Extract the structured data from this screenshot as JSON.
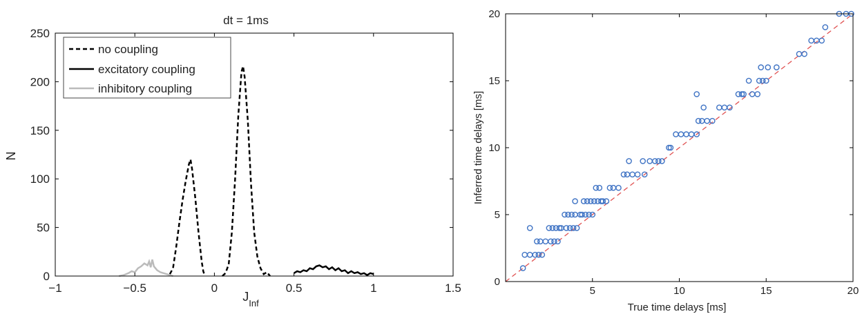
{
  "chart_data": [
    {
      "type": "line",
      "title": "dt = 1ms",
      "xlabel": "J",
      "xlabel_sub": "Inf",
      "ylabel": "N",
      "xlim": [
        -1,
        1.5
      ],
      "ylim": [
        0,
        250
      ],
      "xticks": [
        -1,
        -0.5,
        0,
        0.5,
        1,
        1.5
      ],
      "xtick_labels": [
        "−1",
        "−0.5",
        "0",
        "0.5",
        "1",
        "1.5"
      ],
      "yticks": [
        0,
        50,
        100,
        150,
        200,
        250
      ],
      "ytick_labels": [
        "0",
        "50",
        "100",
        "150",
        "200",
        "250"
      ],
      "legend_position": "top-left",
      "series": [
        {
          "name": "no coupling",
          "color": "#000000",
          "style": "dashed",
          "segments": [
            [
              [
                -0.28,
                2
              ],
              [
                -0.26,
                8
              ],
              [
                -0.24,
                30
              ],
              [
                -0.22,
                55
              ],
              [
                -0.2,
                78
              ],
              [
                -0.18,
                98
              ],
              [
                -0.16,
                115
              ],
              [
                -0.15,
                120
              ],
              [
                -0.14,
                110
              ],
              [
                -0.12,
                80
              ],
              [
                -0.1,
                45
              ],
              [
                -0.09,
                30
              ],
              [
                -0.08,
                15
              ],
              [
                -0.07,
                5
              ],
              [
                -0.06,
                0
              ]
            ],
            [
              [
                0.05,
                0
              ],
              [
                0.07,
                3
              ],
              [
                0.09,
                12
              ],
              [
                0.11,
                45
              ],
              [
                0.13,
                100
              ],
              [
                0.15,
                165
              ],
              [
                0.17,
                210
              ],
              [
                0.18,
                216
              ],
              [
                0.19,
                205
              ],
              [
                0.21,
                160
              ],
              [
                0.23,
                95
              ],
              [
                0.25,
                45
              ],
              [
                0.27,
                20
              ],
              [
                0.29,
                8
              ],
              [
                0.31,
                2
              ],
              [
                0.33,
                4
              ],
              [
                0.35,
                0
              ]
            ]
          ]
        },
        {
          "name": "excitatory coupling",
          "color": "#000000",
          "style": "solid",
          "segments": [
            [
              [
                0.5,
                3
              ],
              [
                0.52,
                5
              ],
              [
                0.54,
                4
              ],
              [
                0.56,
                6
              ],
              [
                0.58,
                5
              ],
              [
                0.6,
                8
              ],
              [
                0.62,
                7
              ],
              [
                0.64,
                10
              ],
              [
                0.66,
                11
              ],
              [
                0.68,
                9
              ],
              [
                0.7,
                10
              ],
              [
                0.72,
                7
              ],
              [
                0.74,
                9
              ],
              [
                0.76,
                6
              ],
              [
                0.78,
                8
              ],
              [
                0.8,
                5
              ],
              [
                0.82,
                6
              ],
              [
                0.84,
                3
              ],
              [
                0.86,
                5
              ],
              [
                0.88,
                3
              ],
              [
                0.9,
                4
              ],
              [
                0.92,
                2
              ],
              [
                0.94,
                3
              ],
              [
                0.96,
                1
              ],
              [
                0.98,
                3
              ],
              [
                1.0,
                2
              ]
            ]
          ]
        },
        {
          "name": "inhibitory coupling",
          "color": "#bbbbbb",
          "style": "solid",
          "segments": [
            [
              [
                -0.6,
                0
              ],
              [
                -0.57,
                1
              ],
              [
                -0.54,
                3
              ],
              [
                -0.52,
                5
              ],
              [
                -0.5,
                4
              ],
              [
                -0.48,
                8
              ],
              [
                -0.46,
                10
              ],
              [
                -0.44,
                13
              ],
              [
                -0.42,
                11
              ],
              [
                -0.41,
                15
              ],
              [
                -0.4,
                9
              ],
              [
                -0.39,
                17
              ],
              [
                -0.38,
                10
              ],
              [
                -0.36,
                6
              ],
              [
                -0.34,
                4
              ],
              [
                -0.32,
                3
              ],
              [
                -0.3,
                2
              ],
              [
                -0.28,
                1
              ],
              [
                -0.26,
                0
              ]
            ]
          ]
        }
      ]
    },
    {
      "type": "scatter",
      "xlabel": "True time delays [ms]",
      "ylabel": "Inferred time delays [ms]",
      "xlim": [
        0,
        20
      ],
      "ylim": [
        0,
        20
      ],
      "xticks": [
        5,
        10,
        15,
        20
      ],
      "yticks": [
        0,
        5,
        10,
        15,
        20
      ],
      "marker": "open-circle",
      "marker_color": "#3f73c4",
      "reference_line": {
        "style": "dashed",
        "color": "#e05050",
        "from": [
          0,
          0
        ],
        "to": [
          20,
          20
        ]
      },
      "points": {
        "x": [
          1,
          1.1,
          1.4,
          1.4,
          1.7,
          1.8,
          1.9,
          2.0,
          2.1,
          2.3,
          2.5,
          2.6,
          2.7,
          2.8,
          2.9,
          3.0,
          3.1,
          3.2,
          3.4,
          3.5,
          3.6,
          3.7,
          3.8,
          3.9,
          4.0,
          4.0,
          4.1,
          4.3,
          4.4,
          4.5,
          4.6,
          4.7,
          4.8,
          4.9,
          5.0,
          5.1,
          5.2,
          5.3,
          5.4,
          5.5,
          5.6,
          5.8,
          6.0,
          6.2,
          6.5,
          6.8,
          7.0,
          7.1,
          7.3,
          7.6,
          7.9,
          8.0,
          8.3,
          8.6,
          8.8,
          9.0,
          9.4,
          9.5,
          9.8,
          10.1,
          10.4,
          10.7,
          11.0,
          11.0,
          11.1,
          11.3,
          11.4,
          11.6,
          11.9,
          12.3,
          12.6,
          12.9,
          13.4,
          13.6,
          13.7,
          14.0,
          14.2,
          14.5,
          14.6,
          14.7,
          14.8,
          15.0,
          15.1,
          15.6,
          16.9,
          17.2,
          17.6,
          17.9,
          18.2,
          18.4,
          19.2,
          19.6,
          19.9
        ],
        "y": [
          1,
          2,
          2,
          4,
          2,
          3,
          2,
          3,
          2,
          3,
          4,
          3,
          4,
          3,
          4,
          3,
          4,
          4,
          5,
          4,
          5,
          4,
          5,
          4,
          5,
          6,
          4,
          5,
          5,
          6,
          5,
          6,
          5,
          6,
          5,
          6,
          7,
          6,
          7,
          6,
          6,
          6,
          7,
          7,
          7,
          8,
          8,
          9,
          8,
          8,
          9,
          8,
          9,
          9,
          9,
          9,
          10,
          10,
          11,
          11,
          11,
          11,
          11,
          14,
          12,
          12,
          13,
          12,
          12,
          13,
          13,
          13,
          14,
          14,
          14,
          15,
          14,
          14,
          15,
          16,
          15,
          15,
          16,
          16,
          17,
          17,
          18,
          18,
          18,
          19,
          20,
          20,
          20
        ]
      }
    }
  ]
}
